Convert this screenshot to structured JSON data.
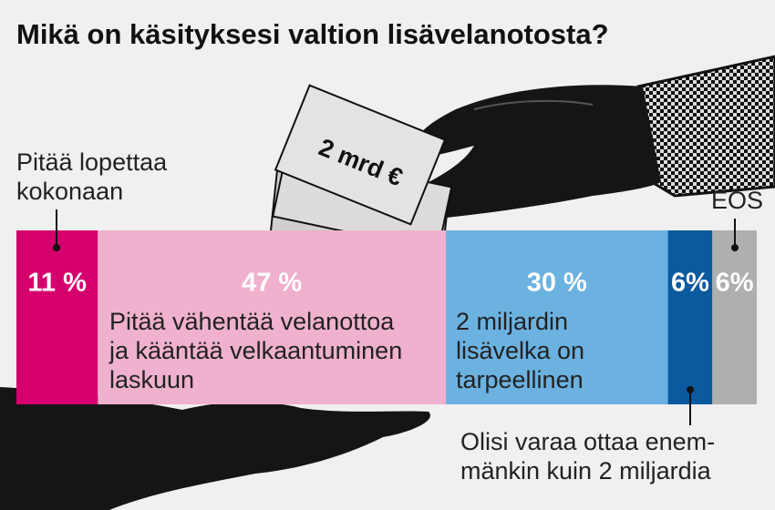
{
  "chart_data": {
    "type": "stacked_bar",
    "title": "Mikä on käsityksesi valtion lisävelanotosta?",
    "banknote_label": "2 mrd €",
    "xlim": [
      0,
      100
    ],
    "series": [
      {
        "label": [
          "Pitää lopettaa",
          "kokonaan"
        ],
        "color": "#d5006e",
        "values": [
          11
        ],
        "value_labels": [
          "11 %"
        ]
      },
      {
        "label": [
          "Pitää vähentää velanottoa",
          "ja kääntää velkaantuminen",
          "laskuun"
        ],
        "color": "#efb1cd",
        "values": [
          47
        ],
        "value_labels": [
          "47 %"
        ]
      },
      {
        "label": [
          "2 miljardin",
          "lisävelka on",
          "tarpeellinen"
        ],
        "color": "#6cb2e1",
        "values": [
          30
        ],
        "value_labels": [
          "30 %"
        ]
      },
      {
        "label": [
          "Olisi varaa ottaa enem-",
          "mänkin kuin 2 miljardia"
        ],
        "color": "#0b5aa0",
        "values": [
          6
        ],
        "value_labels": [
          "6%"
        ]
      },
      {
        "label": [
          "EOS"
        ],
        "color": "#afafaf",
        "values": [
          6
        ],
        "value_labels": [
          "6%"
        ]
      }
    ]
  }
}
